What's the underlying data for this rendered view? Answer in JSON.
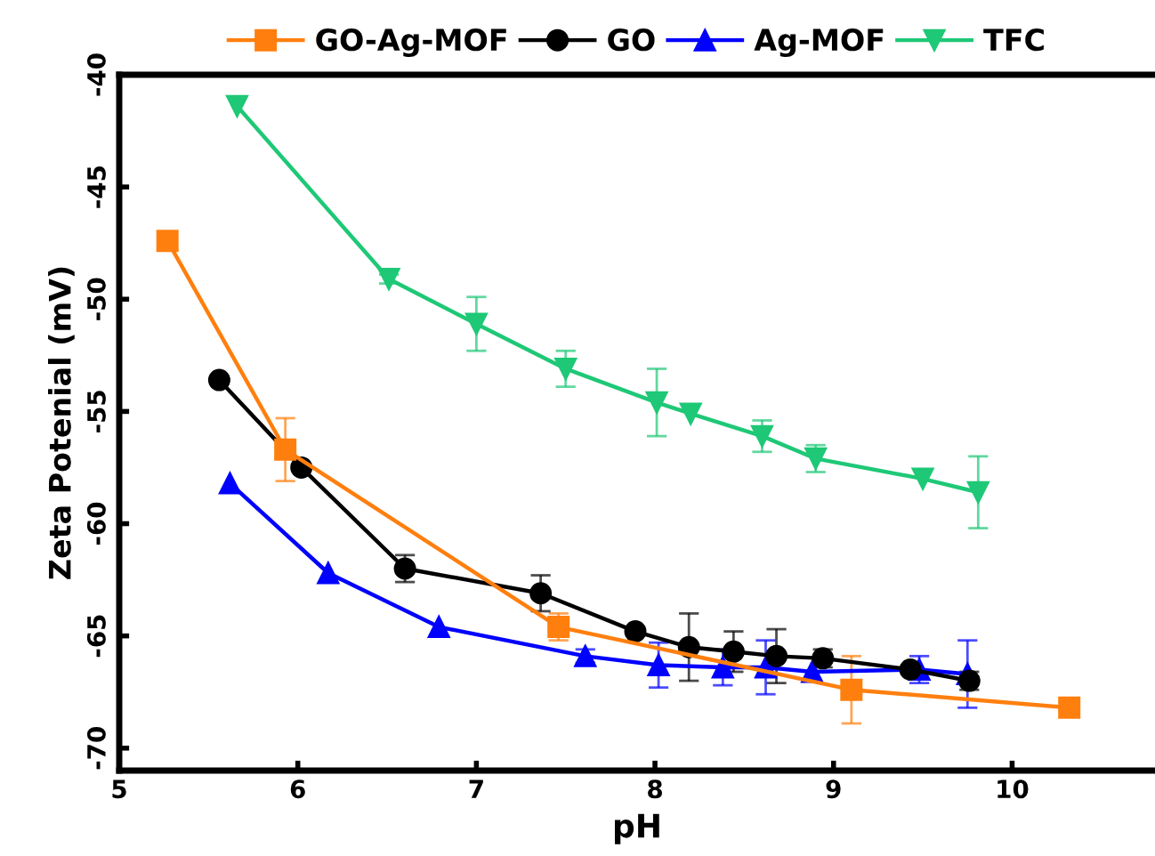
{
  "chart_data": {
    "type": "line",
    "xlabel": "pH",
    "ylabel": "Zeta Potenial (mV)",
    "xlim": [
      5,
      10.8
    ],
    "xticks": [
      5,
      6,
      7,
      8,
      9,
      10
    ],
    "ylim": [
      -71,
      -40
    ],
    "yticks": [
      -70,
      -65,
      -60,
      -55,
      -50,
      -45,
      -40
    ],
    "grid": false,
    "legend": "top",
    "line_style": "solid",
    "series": [
      {
        "name": "GO-Ag-MOF",
        "color": "#ff7f0e",
        "marker": "square",
        "x": [
          5.27,
          5.93,
          7.46,
          9.1,
          10.32
        ],
        "values": [
          -47.4,
          -56.7,
          -64.6,
          -67.4,
          -68.2
        ],
        "errors": [
          null,
          1.4,
          0.6,
          1.5,
          null
        ]
      },
      {
        "name": "GO",
        "color": "#000000",
        "marker": "circle",
        "x": [
          5.56,
          6.02,
          6.6,
          7.36,
          7.89,
          8.19,
          8.44,
          8.68,
          8.94,
          9.43,
          9.76
        ],
        "values": [
          -53.6,
          -57.5,
          -62.0,
          -63.1,
          -64.8,
          -65.5,
          -65.7,
          -65.9,
          -66.0,
          -66.5,
          -67.0
        ],
        "errors": [
          null,
          null,
          0.6,
          0.8,
          0.2,
          1.5,
          0.9,
          1.2,
          0.4,
          0.2,
          0.4
        ]
      },
      {
        "name": "Ag-MOF",
        "color": "#0000ff",
        "marker": "triangle",
        "x": [
          5.62,
          6.17,
          6.79,
          7.61,
          8.02,
          8.38,
          8.62,
          8.88,
          9.48,
          9.75
        ],
        "values": [
          -58.2,
          -62.2,
          -64.6,
          -65.9,
          -66.3,
          -66.4,
          -66.4,
          -66.6,
          -66.5,
          -66.7
        ],
        "errors": [
          null,
          null,
          null,
          0.3,
          1.0,
          0.8,
          1.2,
          null,
          0.6,
          1.5
        ]
      },
      {
        "name": "TFC",
        "color": "#1ec876",
        "marker": "triangle_down",
        "x": [
          5.66,
          6.51,
          7.0,
          7.5,
          8.01,
          8.2,
          8.6,
          8.9,
          9.5,
          9.81
        ],
        "values": [
          -41.4,
          -49.1,
          -51.1,
          -53.1,
          -54.6,
          -55.1,
          -56.1,
          -57.1,
          -58.0,
          -58.6
        ],
        "errors": [
          null,
          0.2,
          1.2,
          0.8,
          1.5,
          null,
          0.7,
          0.6,
          null,
          1.6
        ]
      }
    ]
  }
}
